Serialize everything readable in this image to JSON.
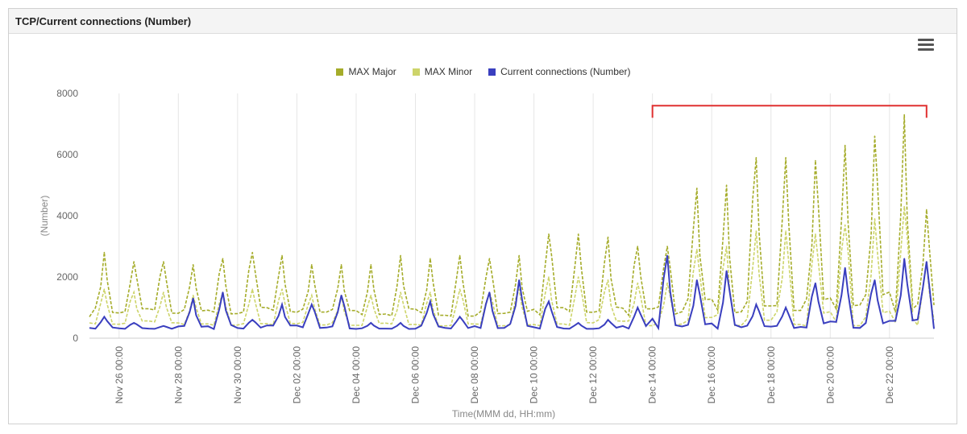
{
  "panel": {
    "title": "TCP/Current connections (Number)"
  },
  "chart_data": {
    "type": "line",
    "title": "",
    "ylabel": "(Number)",
    "xlabel": "Time(MMM dd, HH:mm)",
    "ylim": [
      0,
      8000
    ],
    "yticks": [
      0,
      2000,
      4000,
      6000,
      8000
    ],
    "xlim": [
      "Nov 25 00:00",
      "Dec 23 12:00"
    ],
    "xtick_labels": [
      "Nov 26 00:00",
      "Nov 28 00:00",
      "Nov 30 00:00",
      "Dec 02 00:00",
      "Dec 04 00:00",
      "Dec 06 00:00",
      "Dec 08 00:00",
      "Dec 10 00:00",
      "Dec 12 00:00",
      "Dec 14 00:00",
      "Dec 16 00:00",
      "Dec 18 00:00",
      "Dec 20 00:00",
      "Dec 22 00:00"
    ],
    "grid": "vertical",
    "legend_position": "top-center",
    "series": [
      {
        "name": "MAX Major",
        "color": "#a5ac2a",
        "style": "dashed",
        "note_unit": "daily peaks",
        "x": [
          "Nov 25 12:00",
          "Nov 26 12:00",
          "Nov 27 12:00",
          "Nov 28 12:00",
          "Nov 29 12:00",
          "Nov 30 12:00",
          "Dec 01 12:00",
          "Dec 02 12:00",
          "Dec 03 12:00",
          "Dec 04 12:00",
          "Dec 05 12:00",
          "Dec 06 12:00",
          "Dec 07 12:00",
          "Dec 08 12:00",
          "Dec 09 12:00",
          "Dec 10 12:00",
          "Dec 11 12:00",
          "Dec 12 12:00",
          "Dec 13 12:00",
          "Dec 14 12:00",
          "Dec 15 12:00",
          "Dec 16 12:00",
          "Dec 17 12:00",
          "Dec 18 12:00",
          "Dec 19 12:00",
          "Dec 20 12:00",
          "Dec 21 12:00",
          "Dec 22 12:00",
          "Dec 23 06:00"
        ],
        "values": [
          2800,
          2500,
          2500,
          2400,
          2600,
          2800,
          2700,
          2400,
          2400,
          2400,
          2700,
          2600,
          2700,
          2600,
          2700,
          3400,
          3400,
          3300,
          3000,
          3000,
          4900,
          5000,
          5900,
          5900,
          5800,
          6300,
          6600,
          7300,
          4200
        ]
      },
      {
        "name": "MAX Minor",
        "color": "#cdd46a",
        "style": "dashed",
        "x": [
          "Nov 25 12:00",
          "Nov 26 12:00",
          "Nov 27 12:00",
          "Nov 28 12:00",
          "Nov 29 12:00",
          "Nov 30 12:00",
          "Dec 01 12:00",
          "Dec 02 12:00",
          "Dec 03 12:00",
          "Dec 04 12:00",
          "Dec 05 12:00",
          "Dec 06 12:00",
          "Dec 07 12:00",
          "Dec 08 12:00",
          "Dec 09 12:00",
          "Dec 10 12:00",
          "Dec 11 12:00",
          "Dec 12 12:00",
          "Dec 13 12:00",
          "Dec 14 12:00",
          "Dec 15 12:00",
          "Dec 16 12:00",
          "Dec 17 12:00",
          "Dec 18 12:00",
          "Dec 19 12:00",
          "Dec 20 12:00",
          "Dec 21 12:00",
          "Dec 22 12:00",
          "Dec 23 06:00"
        ],
        "values": [
          1600,
          1500,
          1500,
          1400,
          1500,
          1600,
          1600,
          1400,
          1400,
          1400,
          1500,
          1500,
          1600,
          1500,
          1600,
          2000,
          2000,
          1900,
          1800,
          1800,
          2900,
          3000,
          3500,
          3500,
          3400,
          3700,
          3900,
          4300,
          2500
        ]
      },
      {
        "name": "Current connections (Number)",
        "color": "#3a3fbf",
        "style": "solid",
        "baseline": 300,
        "x": [
          "Nov 25 12:00",
          "Nov 26 12:00",
          "Nov 27 12:00",
          "Nov 28 12:00",
          "Nov 29 12:00",
          "Nov 30 12:00",
          "Dec 01 12:00",
          "Dec 02 12:00",
          "Dec 03 12:00",
          "Dec 04 12:00",
          "Dec 05 12:00",
          "Dec 06 12:00",
          "Dec 07 12:00",
          "Dec 08 12:00",
          "Dec 09 12:00",
          "Dec 10 12:00",
          "Dec 11 12:00",
          "Dec 12 12:00",
          "Dec 13 12:00",
          "Dec 14 12:00",
          "Dec 15 12:00",
          "Dec 16 12:00",
          "Dec 17 12:00",
          "Dec 18 12:00",
          "Dec 19 12:00",
          "Dec 20 12:00",
          "Dec 21 12:00",
          "Dec 22 12:00",
          "Dec 23 06:00"
        ],
        "values": [
          700,
          500,
          400,
          1300,
          1500,
          600,
          1100,
          1100,
          1400,
          500,
          500,
          1200,
          700,
          1500,
          1900,
          1200,
          500,
          600,
          1000,
          2700,
          1900,
          2200,
          1100,
          1000,
          1800,
          2300,
          1900,
          2600,
          2500
        ]
      }
    ]
  },
  "annotation": {
    "type": "bracket",
    "color": "#e03030",
    "x_start": "Dec 14 00:00",
    "x_end": "Dec 23 06:00",
    "y_value": 7600
  }
}
